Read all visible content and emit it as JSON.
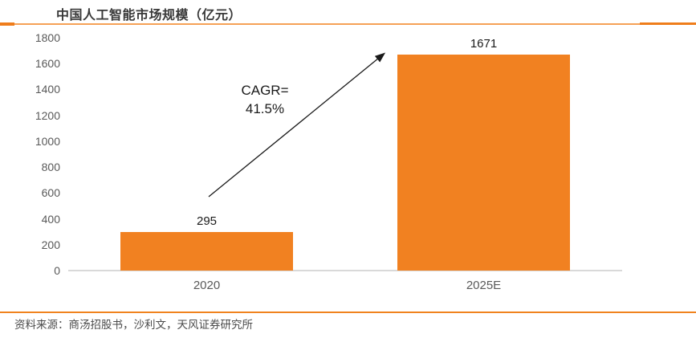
{
  "header": {
    "title": "中国人工智能市场规模（亿元）"
  },
  "annotation": {
    "cagr_line1": "CAGR=",
    "cagr_line2": "41.5%"
  },
  "footer": {
    "source": "资料来源：商汤招股书，沙利文，天风证券研究所"
  },
  "colors": {
    "bar": "#F18121",
    "separator_accent": "#EF7D1B",
    "separator_line": "#F5A156",
    "bottom_rule": "#F0831E",
    "axis_text": "#595959",
    "baseline": "#D9D9D9",
    "arrow": "#1a1a1a"
  },
  "chart_data": {
    "type": "bar",
    "title": "中国人工智能市场规模（亿元）",
    "categories": [
      "2020",
      "2025E"
    ],
    "values": [
      295,
      1671
    ],
    "value_labels": [
      "295",
      "1671"
    ],
    "xlabel": "",
    "ylabel": "",
    "ylim": [
      0,
      1800
    ],
    "ytick_step": 200,
    "yticks": [
      0,
      200,
      400,
      600,
      800,
      1000,
      1200,
      1400,
      1600,
      1800
    ],
    "grid": false,
    "legend": false,
    "bar_color": "#F18121",
    "annotation": "CAGR=\n41.5%",
    "annotation_meaning": "compound annual growth rate from 2020 to 2025E"
  }
}
